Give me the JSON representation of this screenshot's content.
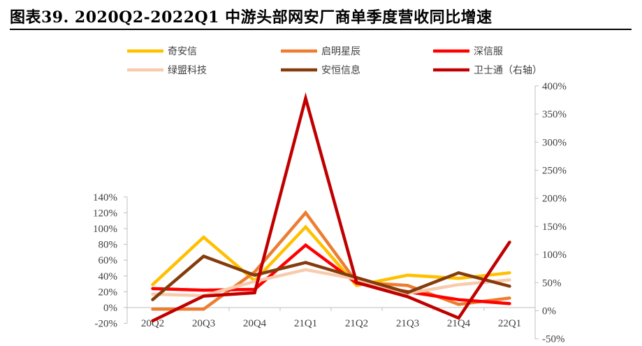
{
  "title": "图表39. 2020Q2-2022Q1 中游头部网安厂商单季度营收同比增速",
  "colors": {
    "qianxin": "#FFC000",
    "qiming": "#ED7D31",
    "shenxinfu": "#FF0000",
    "lvmeng": "#F8CBAD",
    "anheng": "#843C0C",
    "weishitong": "#C00000",
    "axis": "#bfbfbf",
    "text": "#404040"
  },
  "chart_data": {
    "type": "line",
    "title": "",
    "xlabel": "",
    "ylabel": "",
    "categories": [
      "20Q2",
      "20Q3",
      "20Q4",
      "21Q1",
      "21Q2",
      "21Q3",
      "21Q4",
      "22Q1"
    ],
    "y_left": {
      "range": [
        -20,
        140
      ],
      "ticks": [
        -20,
        0,
        20,
        40,
        60,
        80,
        100,
        120,
        140
      ],
      "tick_labels": [
        "-20%",
        "0%",
        "20%",
        "40%",
        "60%",
        "80%",
        "100%",
        "120%",
        "140%"
      ]
    },
    "y_right": {
      "range": [
        -50,
        400
      ],
      "ticks": [
        -50,
        0,
        50,
        100,
        150,
        200,
        250,
        300,
        350,
        400
      ],
      "tick_labels": [
        "-50%",
        "0%",
        "50%",
        "100%",
        "150%",
        "200%",
        "250%",
        "300%",
        "350%",
        "400%"
      ]
    },
    "grid": false,
    "legend_position": "top",
    "series": [
      {
        "name": "奇安信",
        "axis": "left",
        "color_key": "qianxin",
        "values": [
          29,
          89,
          34,
          102,
          28,
          41,
          37,
          44
        ]
      },
      {
        "name": "启明星辰",
        "axis": "left",
        "color_key": "qiming",
        "values": [
          -2,
          -2,
          45,
          120,
          32,
          28,
          4,
          12
        ]
      },
      {
        "name": "深信服",
        "axis": "left",
        "color_key": "shenxinfu",
        "values": [
          24,
          22,
          23,
          79,
          31,
          20,
          10,
          5
        ]
      },
      {
        "name": "绿盟科技",
        "axis": "left",
        "color_key": "lvmeng",
        "values": [
          17,
          15,
          33,
          48,
          36,
          18,
          29,
          35
        ]
      },
      {
        "name": "安恒信息",
        "axis": "left",
        "color_key": "anheng",
        "values": [
          10,
          65,
          41,
          57,
          38,
          19,
          44,
          27
        ]
      },
      {
        "name": "卫士通（右轴）",
        "axis": "right",
        "color_key": "weishitong",
        "values": [
          -18,
          26,
          32,
          378,
          50,
          25,
          -13,
          122
        ]
      }
    ]
  }
}
